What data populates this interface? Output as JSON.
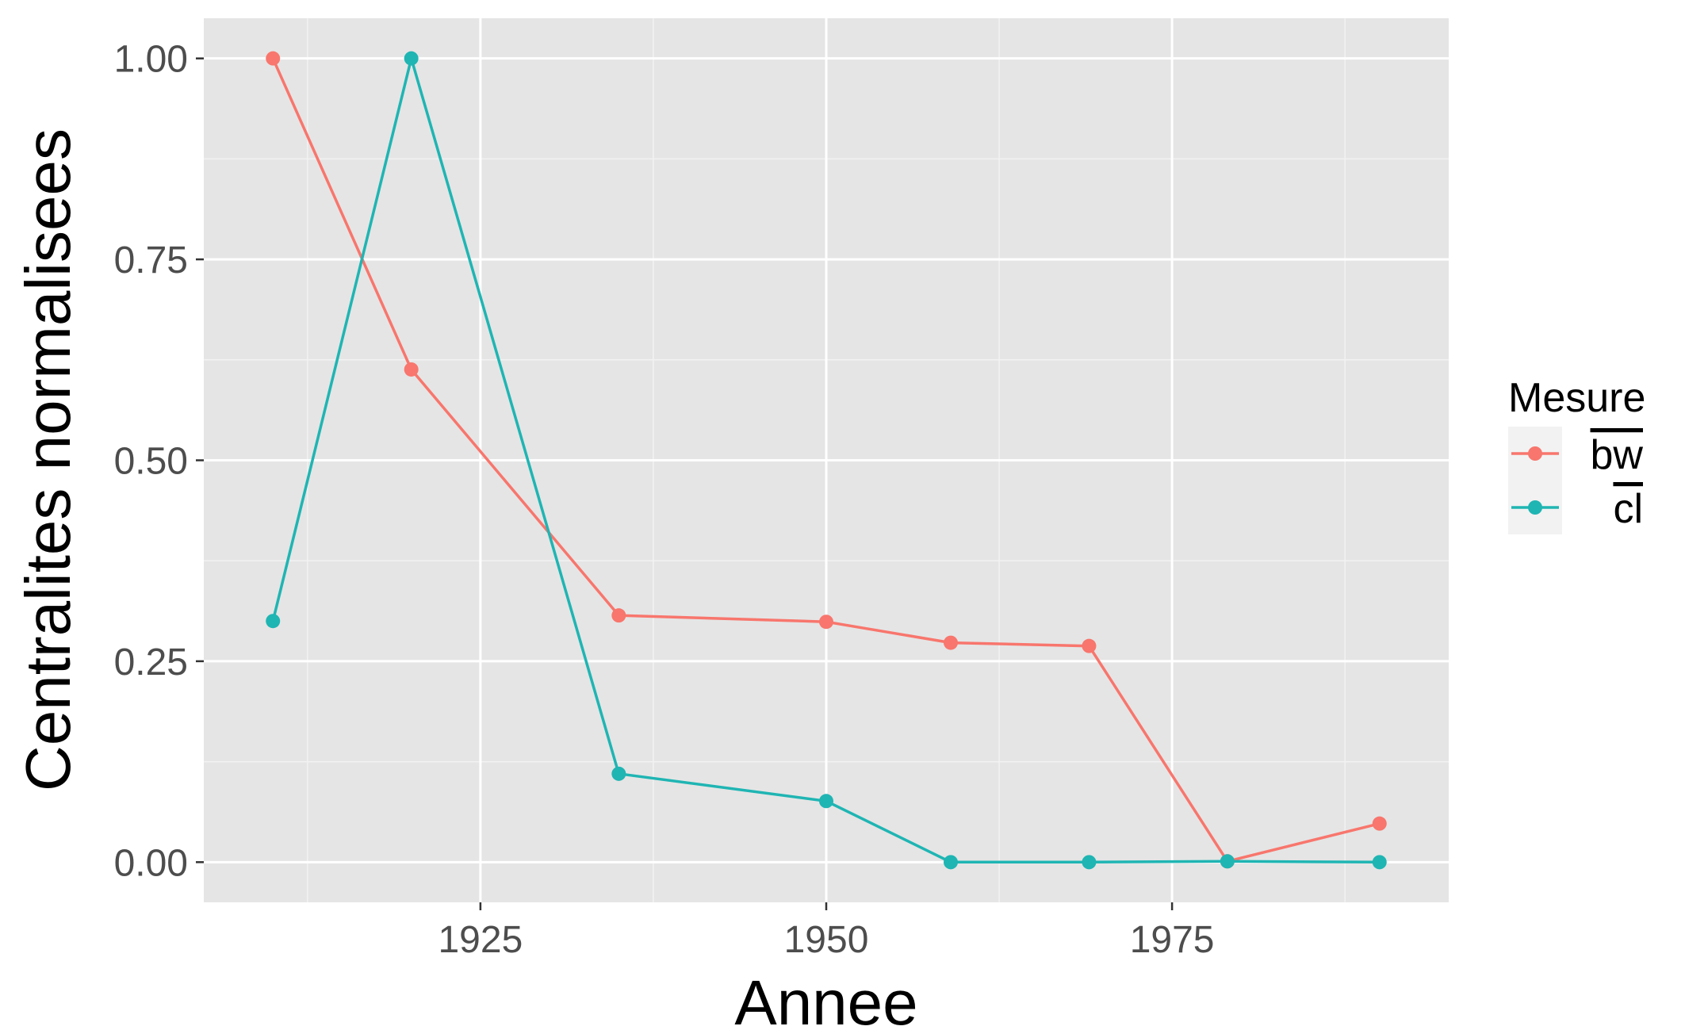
{
  "chart_data": {
    "type": "line",
    "title": "",
    "xlabel": "Annee",
    "ylabel": "Centralites normalisees",
    "xlim": [
      1905,
      1995
    ],
    "ylim": [
      -0.05,
      1.05
    ],
    "x_ticks": [
      1925,
      1950,
      1975
    ],
    "x_tick_labels": [
      "1925",
      "1950",
      "1975"
    ],
    "y_ticks": [
      0,
      0.25,
      0.5,
      0.75,
      1
    ],
    "y_tick_labels": [
      "0.00",
      "0.25",
      "0.50",
      "0.75",
      "1.00"
    ],
    "grid": true,
    "legend": {
      "title": "Mesure",
      "position": "right"
    },
    "series": [
      {
        "name": "bw",
        "overline": true,
        "color": "#F8766D",
        "x": [
          1910,
          1920,
          1935,
          1950,
          1959,
          1969,
          1979,
          1990
        ],
        "y": [
          1.0,
          0.613,
          0.307,
          0.299,
          0.273,
          0.269,
          0.001,
          0.048
        ]
      },
      {
        "name": "cl",
        "overline": true,
        "color": "#1FB5B3",
        "x": [
          1910,
          1920,
          1935,
          1950,
          1959,
          1969,
          1979,
          1990
        ],
        "y": [
          0.3,
          1.0,
          0.11,
          0.076,
          0.0,
          0.0,
          0.001,
          0.0
        ]
      }
    ]
  }
}
